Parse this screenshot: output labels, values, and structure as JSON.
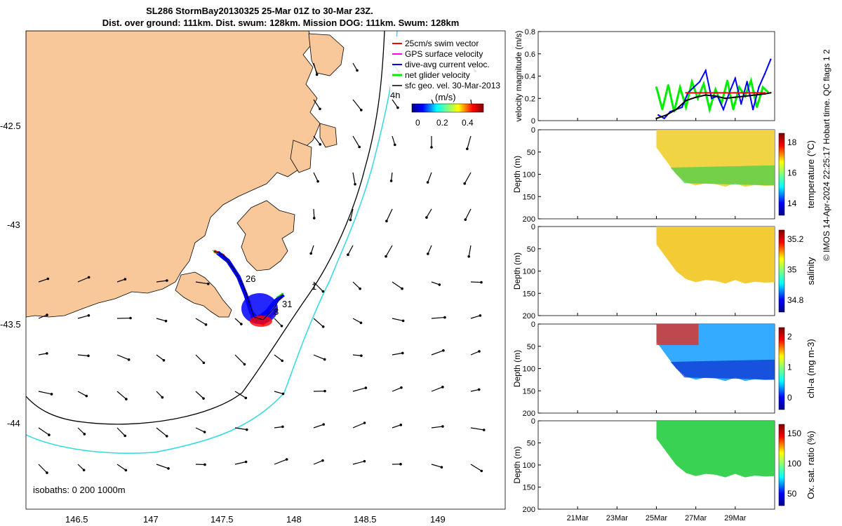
{
  "header": {
    "title_line1": "SL286 StormBay20130325 25-Mar 01Z to 30-Mar 23Z.",
    "title_line2": "Dist. over ground: 111km. Dist. swum: 128km. Mission DOG: 111km. Swum: 128km"
  },
  "footer_note": "© IMOS 14-Apr-2024 22:25:17 Hobart time. QC flags 1  2",
  "colors": {
    "land": "#f8c89a",
    "isobath_200": "#000000",
    "isobath_1000": "#2fdbe0",
    "track_swim": "#ff0000",
    "track_dac": "#0000ff",
    "velocity_net": "#00ee00",
    "velocity_geo": "#000000"
  },
  "map": {
    "legend": [
      {
        "label": "25cm/s swim vector",
        "color": "#ff0000"
      },
      {
        "label": "GPS surface velocity",
        "color": "#ff00ff"
      },
      {
        "label": "dive-avg current veloc.",
        "color": "#0000ff"
      },
      {
        "label": "net glider velocity",
        "color": "#00ee00"
      },
      {
        "label": "sfc geo. vel. 30-Mar-2013",
        "color": "#000000"
      }
    ],
    "colorbar": {
      "unit": "(m/s)",
      "ticks": [
        "0",
        "0.2",
        "0.4"
      ]
    },
    "isobath_label": "isobaths: 0   200  1000m",
    "x_ticks": [
      "146.5",
      "147",
      "147.5",
      "148",
      "148.5",
      "149"
    ],
    "y_ticks": [
      "-42.5",
      "-43",
      "-43.5",
      "-44"
    ],
    "track_labels": [
      "26",
      "1",
      "31",
      "8"
    ],
    "vector_label": "4h"
  },
  "chart_data": [
    {
      "type": "line",
      "title": "",
      "ylabel": "velocity magnitude (m/s)",
      "ylim": [
        0,
        0.8
      ],
      "yticks": [
        "0",
        "0.2",
        "0.4",
        "0.6",
        "0.8"
      ],
      "x_dates": [
        "21Mar",
        "23Mar",
        "25Mar",
        "27Mar",
        "29Mar"
      ],
      "series": [
        {
          "color": "#00ee00",
          "x": [
            25.0,
            25.3,
            25.6,
            25.9,
            26.2,
            26.5,
            26.8,
            27.1,
            27.4,
            27.7,
            28.0,
            28.3,
            28.6,
            28.9,
            29.2,
            29.5,
            29.8,
            30.1,
            30.4,
            30.7
          ],
          "values": [
            0.3,
            0.1,
            0.32,
            0.08,
            0.3,
            0.12,
            0.35,
            0.2,
            0.33,
            0.1,
            0.28,
            0.15,
            0.36,
            0.1,
            0.3,
            0.22,
            0.36,
            0.12,
            0.3,
            0.25
          ]
        },
        {
          "color": "#0000ff",
          "x": [
            25.1,
            25.4,
            25.7,
            26.0,
            26.3,
            26.6,
            26.9,
            27.2,
            27.5,
            27.8,
            28.1,
            28.4,
            28.7,
            29.0,
            29.3,
            29.6,
            29.9,
            30.2,
            30.5,
            30.8
          ],
          "values": [
            0.05,
            0.02,
            0.08,
            0.1,
            0.12,
            0.25,
            0.3,
            0.35,
            0.45,
            0.2,
            0.22,
            0.1,
            0.25,
            0.38,
            0.15,
            0.35,
            0.1,
            0.3,
            0.42,
            0.55
          ]
        },
        {
          "color": "#000000",
          "x": [
            25.0,
            25.5,
            26.0,
            26.5,
            27.0,
            27.5,
            28.0,
            28.5,
            29.0,
            29.5,
            30.0,
            30.5,
            30.8
          ],
          "values": [
            0.02,
            0.05,
            0.1,
            0.18,
            0.21,
            0.23,
            0.22,
            0.2,
            0.21,
            0.22,
            0.23,
            0.24,
            0.25
          ]
        },
        {
          "color": "#ff0000",
          "x": [
            26.5,
            27.0,
            27.5,
            28.0,
            28.5,
            29.0,
            29.5,
            30.0,
            30.5
          ],
          "values": [
            0.25,
            0.25,
            0.25,
            0.25,
            0.25,
            0.25,
            0.25,
            0.25,
            0.25
          ]
        }
      ]
    },
    {
      "type": "heatmap",
      "ylabel": "Depth (m)",
      "colorbar_label": "temperature (°C)",
      "yticks": [
        "0",
        "50",
        "100",
        "150",
        "200"
      ],
      "colorbar_ticks": [
        "18",
        "16",
        "14"
      ],
      "x_dates": [
        "21Mar",
        "23Mar",
        "25Mar",
        "27Mar",
        "29Mar"
      ]
    },
    {
      "type": "heatmap",
      "ylabel": "Depth (m)",
      "colorbar_label": "salinity",
      "yticks": [
        "0",
        "50",
        "100",
        "150",
        "200"
      ],
      "colorbar_ticks": [
        "35.2",
        "35",
        "34.8"
      ],
      "x_dates": [
        "21Mar",
        "23Mar",
        "25Mar",
        "27Mar",
        "29Mar"
      ]
    },
    {
      "type": "heatmap",
      "ylabel": "Depth (m)",
      "colorbar_label": "chl-a (mg m-3)",
      "yticks": [
        "0",
        "50",
        "100",
        "150",
        "200"
      ],
      "colorbar_ticks": [
        "2",
        "1",
        "0"
      ],
      "x_dates": [
        "21Mar",
        "23Mar",
        "25Mar",
        "27Mar",
        "29Mar"
      ]
    },
    {
      "type": "heatmap",
      "ylabel": "Depth (m)",
      "colorbar_label": "Ox. sat. ratio (%)",
      "yticks": [
        "0",
        "50",
        "100",
        "150",
        "200"
      ],
      "colorbar_ticks": [
        "150",
        "100",
        "50"
      ],
      "x_dates": [
        "21Mar",
        "23Mar",
        "25Mar",
        "27Mar",
        "29Mar"
      ]
    }
  ]
}
